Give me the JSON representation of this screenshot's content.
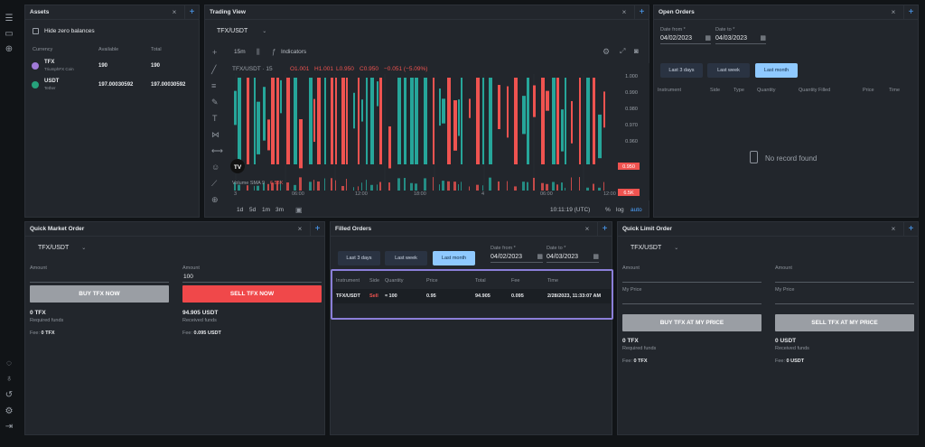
{
  "assets": {
    "title": "Assets",
    "hide_zero": "Hide zero balances",
    "cols": [
      "Currency",
      "Available",
      "Total"
    ],
    "rows": [
      {
        "icon": "tfx-coin-icon",
        "symbol": "TFX",
        "name": "TriumphFX Coin",
        "available": "190",
        "total": "190",
        "color": "#a07ad8"
      },
      {
        "icon": "usdt-coin-icon",
        "symbol": "USDT",
        "name": "Tether",
        "available": "197.00030592",
        "total": "197.00030592",
        "color": "#26a17b"
      }
    ]
  },
  "trading": {
    "title": "Trading View",
    "pair": "TFX/USDT",
    "interval": "15m",
    "indicators": "Indicators",
    "legend": {
      "symbol": "TFX/USDT · 15",
      "o": "O1.001",
      "h": "H1.001",
      "l": "L0.950",
      "c": "C0.950",
      "chg": "−0.051 (−5.09%)"
    },
    "price_ticks": [
      "1.000",
      "0.990",
      "0.980",
      "0.970",
      "0.960"
    ],
    "price_current": "0.950",
    "volume": {
      "label": "Volume SMA 9",
      "value": "6.53K",
      "badge": "6.5K"
    },
    "time_ticks": [
      "3",
      "06:00",
      "12:00",
      "18:00",
      "4",
      "06:00",
      "12:00"
    ],
    "ranges": [
      "1d",
      "5d",
      "1m",
      "3m"
    ],
    "clock": "10:11:19 (UTC)",
    "pct": "%",
    "log": "log",
    "auto": "auto",
    "logo": "TV"
  },
  "open_orders": {
    "title": "Open Orders",
    "date_from_label": "Date from *",
    "date_from": "04/02/2023",
    "date_to_label": "Date to *",
    "date_to": "04/03/2023",
    "tabs": [
      "Last 3 days",
      "Last week",
      "Last month"
    ],
    "cols": [
      "Instrument",
      "Side",
      "Type",
      "Quantity",
      "Quantity Filled",
      "Price",
      "Time"
    ],
    "empty": "No record found"
  },
  "qmo": {
    "title": "Quick Market Order",
    "pair": "TFX/USDT",
    "buy": {
      "amount_label": "Amount",
      "amount": "",
      "button": "BUY TFX NOW",
      "funds": "0",
      "funds_unit": "TFX",
      "funds_label": "Required funds",
      "fee_label": "Fee:",
      "fee": "0",
      "fee_unit": "TFX"
    },
    "sell": {
      "amount_label": "Amount",
      "amount": "100",
      "button": "SELL TFX NOW",
      "funds": "94.905",
      "funds_unit": "USDT",
      "funds_label": "Received funds",
      "fee_label": "Fee:",
      "fee": "0.095",
      "fee_unit": "USDT"
    }
  },
  "filled": {
    "title": "Filled Orders",
    "tabs": [
      "Last 3 days",
      "Last week",
      "Last month"
    ],
    "date_from_label": "Date from *",
    "date_from": "04/02/2023",
    "date_to_label": "Date to *",
    "date_to": "04/03/2023",
    "cols": [
      "Instrument",
      "Side",
      "Quantity",
      "Price",
      "Total",
      "Fee",
      "Time"
    ],
    "row": {
      "instrument": "TFX/USDT",
      "side": "Sell",
      "quantity": "≈ 100",
      "price": "0.95",
      "total": "94.905",
      "fee": "0.095",
      "time": "2/28/2023, 11:33:07 AM"
    }
  },
  "qlo": {
    "title": "Quick Limit Order",
    "pair": "TFX/USDT",
    "buy": {
      "amount_label": "Amount",
      "price_label": "My Price",
      "button": "BUY TFX AT MY PRICE",
      "funds": "0",
      "funds_unit": "TFX",
      "funds_label": "Required funds",
      "fee_label": "Fee:",
      "fee": "0",
      "fee_unit": "TFX"
    },
    "sell": {
      "amount_label": "Amount",
      "price_label": "My Price",
      "button": "SELL TFX AT MY PRICE",
      "funds": "0",
      "funds_unit": "USDT",
      "funds_label": "Received funds",
      "fee_label": "Fee:",
      "fee": "0",
      "fee_unit": "USDT"
    }
  },
  "colors": {
    "up": "#26a69a",
    "down": "#ef5350",
    "accent": "#4da3ff",
    "highlight": "#8b7fd9"
  }
}
